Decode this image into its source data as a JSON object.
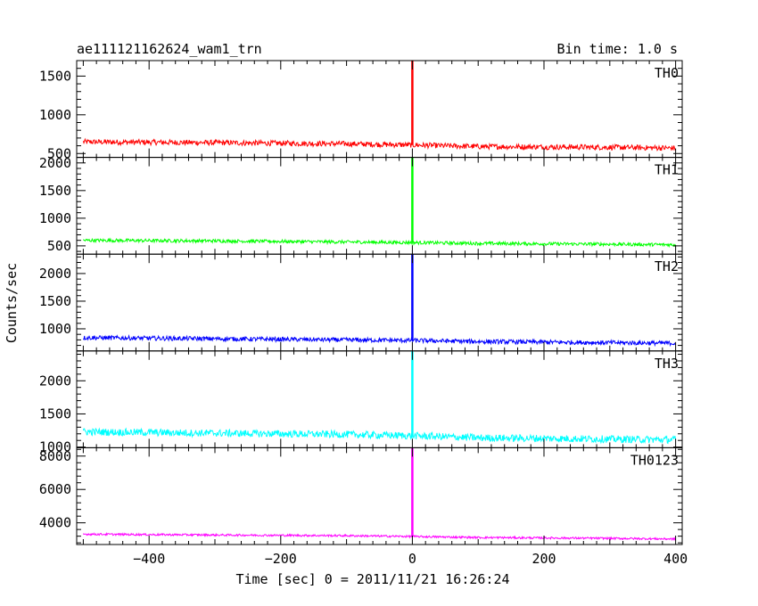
{
  "chart_data": {
    "type": "line",
    "title": "ae111121162624_wam1_trn",
    "subtitle": "Bin time: 1.0 s",
    "xlabel": "Time [sec] 0 = 2011/11/21 16:26:24",
    "ylabel": "Counts/sec",
    "xlim": [
      -510,
      410
    ],
    "x_ticks": [
      -400,
      -200,
      0,
      200,
      400
    ],
    "series": [
      {
        "name": "TH0",
        "color": "#ff0000",
        "ylim": [
          450,
          1700
        ],
        "y_ticks": [
          500,
          1000,
          1500
        ],
        "points": [
          [
            -500,
            650
          ],
          [
            -300,
            640
          ],
          [
            -100,
            625
          ],
          [
            0,
            610
          ],
          [
            100,
            590
          ],
          [
            300,
            580
          ],
          [
            400,
            570
          ]
        ],
        "noise": 35,
        "spike": {
          "x": 0,
          "y": 1700
        }
      },
      {
        "name": "TH1",
        "color": "#00ff00",
        "ylim": [
          350,
          2100
        ],
        "y_ticks": [
          500,
          1000,
          1500,
          2000
        ],
        "points": [
          [
            -500,
            600
          ],
          [
            -300,
            590
          ],
          [
            -100,
            570
          ],
          [
            0,
            560
          ],
          [
            100,
            545
          ],
          [
            300,
            530
          ],
          [
            400,
            520
          ]
        ],
        "noise": 30,
        "spike": {
          "x": 0,
          "y": 2100
        }
      },
      {
        "name": "TH2",
        "color": "#0000ff",
        "ylim": [
          600,
          2350
        ],
        "y_ticks": [
          1000,
          1500,
          2000
        ],
        "points": [
          [
            -500,
            840
          ],
          [
            -300,
            820
          ],
          [
            -100,
            800
          ],
          [
            0,
            790
          ],
          [
            100,
            770
          ],
          [
            300,
            750
          ],
          [
            400,
            740
          ]
        ],
        "noise": 40,
        "spike": {
          "x": 0,
          "y": 2350
        }
      },
      {
        "name": "TH3",
        "color": "#00ffff",
        "ylim": [
          990,
          2450
        ],
        "y_ticks": [
          1000,
          1500,
          2000
        ],
        "points": [
          [
            -500,
            1230
          ],
          [
            -300,
            1210
          ],
          [
            -100,
            1190
          ],
          [
            0,
            1170
          ],
          [
            100,
            1140
          ],
          [
            300,
            1120
          ],
          [
            400,
            1110
          ]
        ],
        "noise": 55,
        "spike": {
          "x": 0,
          "y": 2450
        }
      },
      {
        "name": "TH0123",
        "color": "#ff00ff",
        "ylim": [
          2700,
          8500
        ],
        "y_ticks": [
          4000,
          6000,
          8000
        ],
        "points": [
          [
            -500,
            3320
          ],
          [
            -300,
            3270
          ],
          [
            -100,
            3230
          ],
          [
            0,
            3180
          ],
          [
            100,
            3120
          ],
          [
            300,
            3070
          ],
          [
            400,
            3030
          ]
        ],
        "noise": 60,
        "spike": {
          "x": 0,
          "y": 8500
        }
      }
    ],
    "grid": false,
    "legend": "none"
  }
}
